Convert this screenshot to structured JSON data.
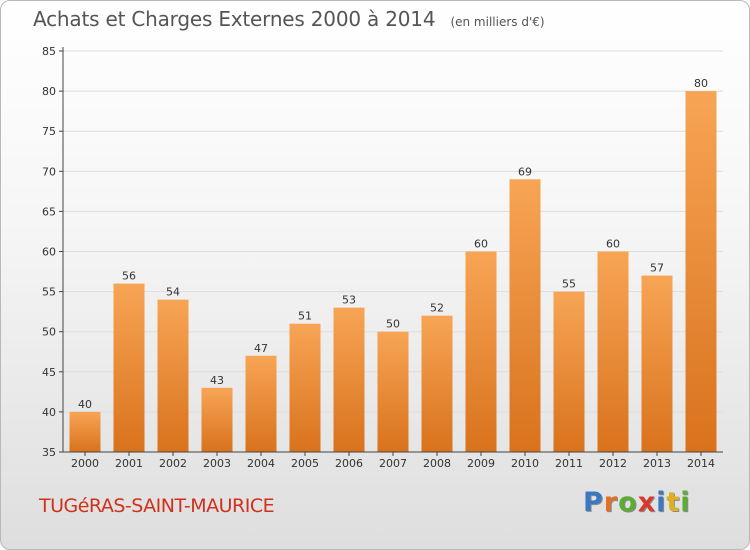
{
  "header": {
    "title": "Achats et Charges Externes 2000 à 2014",
    "unit": "(en milliers d'€)"
  },
  "footer": {
    "city": "TUGéRAS-SAINT-MAURICE",
    "brand": "Proxiti",
    "brand_letter_colors": [
      "#3a78c4",
      "#e0702a",
      "#5aae33",
      "#d63a2f",
      "#3a78c4",
      "#e0b020",
      "#5aae33"
    ]
  },
  "colors": {
    "bar_top": "#f7a555",
    "bar_bottom": "#d9721c",
    "grid": "#dddddd",
    "axis": "#444444",
    "tick_text": "#333333",
    "label_text": "#333333"
  },
  "chart_data": {
    "type": "bar",
    "title": "Achats et Charges Externes 2000 à 2014",
    "xlabel": "",
    "ylabel": "",
    "categories": [
      "2000",
      "2001",
      "2002",
      "2003",
      "2004",
      "2005",
      "2006",
      "2007",
      "2008",
      "2009",
      "2010",
      "2011",
      "2012",
      "2013",
      "2014"
    ],
    "values": [
      40,
      56,
      54,
      43,
      47,
      51,
      53,
      50,
      52,
      60,
      69,
      55,
      60,
      57,
      80
    ],
    "ylim": [
      35,
      85
    ],
    "yticks": [
      35,
      40,
      45,
      50,
      55,
      60,
      65,
      70,
      75,
      80,
      85
    ],
    "grid": true,
    "data_labels": true
  }
}
